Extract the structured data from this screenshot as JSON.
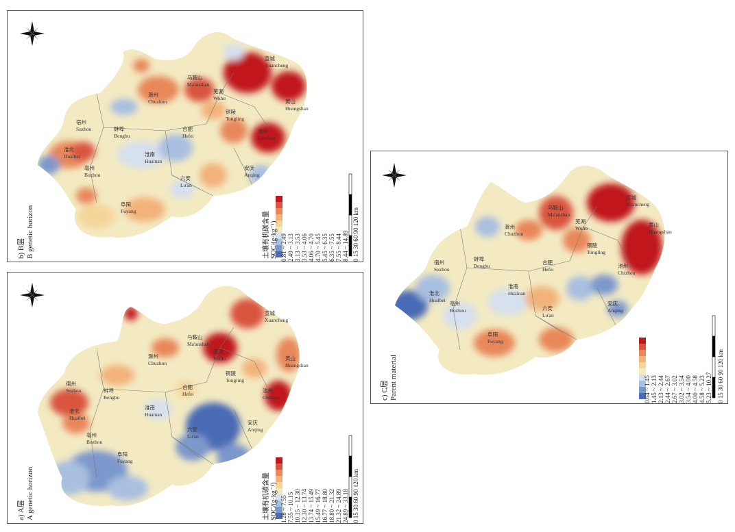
{
  "panels": [
    {
      "id": "b",
      "title_zh": "b) B层",
      "title_en": "B genetic horizon",
      "legend_title_zh": "土壤有机碳含量",
      "legend_title_unit": "SOC/(g·kg⁻¹)",
      "classes": [
        "0.81 ~ 2.49",
        "2.49 ~ 3.13",
        "3.13 ~ 3.53",
        "3.53 ~ 4.06",
        "4.06 ~ 4.70",
        "4.70 ~ 5.45",
        "5.45 ~ 6.35",
        "6.35 ~ 7.55",
        "7.55 ~ 8.44",
        "8.44 ~ 14.89"
      ],
      "cities": [
        {
          "zh": "宿州",
          "en": "Suzhou"
        },
        {
          "zh": "淮北",
          "en": "Huaibei"
        },
        {
          "zh": "亳州",
          "en": "Bozhou"
        },
        {
          "zh": "阜阳",
          "en": "Fuyang"
        },
        {
          "zh": "蚌埠",
          "en": "Bengbu"
        },
        {
          "zh": "淮南",
          "en": "Huainan"
        },
        {
          "zh": "滁州",
          "en": "Chuzhou"
        },
        {
          "zh": "合肥",
          "en": "Hefei"
        },
        {
          "zh": "六安",
          "en": "Lu'an"
        },
        {
          "zh": "马鞍山",
          "en": "Ma'anshan"
        },
        {
          "zh": "芜湖",
          "en": "Wuhu"
        },
        {
          "zh": "铜陵",
          "en": "Tongling"
        },
        {
          "zh": "池州",
          "en": "Chizhou"
        },
        {
          "zh": "安庆",
          "en": "Anqing"
        },
        {
          "zh": "宣城",
          "en": "Xuancheng"
        },
        {
          "zh": "黄山",
          "en": "Huangshan"
        }
      ]
    },
    {
      "id": "a",
      "title_zh": "a) A层",
      "title_en": "A genetic horizon",
      "legend_title_zh": "土壤有机碳含量",
      "legend_title_unit": "SOC/(g·kg⁻¹)",
      "classes": [
        "1.28 ~ 7.55",
        "7.55 ~ 10.15",
        "10.15 ~ 12.30",
        "12.30 ~ 13.74",
        "13.74 ~ 15.49",
        "15.49 ~ 16.77",
        "16.77 ~ 18.80",
        "18.80 ~ 21.32",
        "21.32 ~ 24.89",
        "24.89 ~ 33.18"
      ],
      "cities": [
        {
          "zh": "宿州",
          "en": "Suzhou"
        },
        {
          "zh": "淮北",
          "en": "Huaibei"
        },
        {
          "zh": "亳州",
          "en": "Bozhou"
        },
        {
          "zh": "阜阳",
          "en": "Fuyang"
        },
        {
          "zh": "蚌埠",
          "en": "Bengbu"
        },
        {
          "zh": "淮南",
          "en": "Huainan"
        },
        {
          "zh": "滁州",
          "en": "Chuzhou"
        },
        {
          "zh": "合肥",
          "en": "Hefei"
        },
        {
          "zh": "六安",
          "en": "Lu'an"
        },
        {
          "zh": "马鞍山",
          "en": "Ma'anshan"
        },
        {
          "zh": "芜湖",
          "en": "Wuhu"
        },
        {
          "zh": "铜陵",
          "en": "Tongling"
        },
        {
          "zh": "池州",
          "en": "Chizhou"
        },
        {
          "zh": "安庆",
          "en": "Anqing"
        },
        {
          "zh": "宣城",
          "en": "Xuancheng"
        },
        {
          "zh": "黄山",
          "en": "Huangshan"
        }
      ]
    },
    {
      "id": "c",
      "title_zh": "c) C层",
      "title_en": "Parent material",
      "legend_title_zh": "",
      "legend_title_unit": "",
      "classes": [
        "0.64 ~ 1.45",
        "1.45 ~ 2.13",
        "2.13 ~ 2.44",
        "2.44 ~ 2.67",
        "2.67 ~ 3.02",
        "3.02 ~ 3.54",
        "3.54 ~ 4.00",
        "4.00 ~ 4.58",
        "4.58 ~ 5.23",
        "5.23 ~ 10.27"
      ],
      "cities": [
        {
          "zh": "宿州",
          "en": "Suzhou"
        },
        {
          "zh": "淮北",
          "en": "Huaibei"
        },
        {
          "zh": "亳州",
          "en": "Bozhou"
        },
        {
          "zh": "阜阳",
          "en": "Fuyang"
        },
        {
          "zh": "蚌埠",
          "en": "Bengbu"
        },
        {
          "zh": "淮南",
          "en": "Huainan"
        },
        {
          "zh": "滁州",
          "en": "Chuzhou"
        },
        {
          "zh": "合肥",
          "en": "Hefei"
        },
        {
          "zh": "六安",
          "en": "Lu'an"
        },
        {
          "zh": "马鞍山",
          "en": "Ma'anshan"
        },
        {
          "zh": "芜湖",
          "en": "Wuhu"
        },
        {
          "zh": "铜陵",
          "en": "Tongling"
        },
        {
          "zh": "池州",
          "en": "Chizhou"
        },
        {
          "zh": "安庆",
          "en": "Anqing"
        },
        {
          "zh": "宣城",
          "en": "Xuancheng"
        },
        {
          "zh": "黄山",
          "en": "Huangshan"
        }
      ]
    }
  ],
  "scale_bar": {
    "ticks": [
      "0",
      "15",
      "30",
      "60",
      "90",
      "120"
    ],
    "unit": "km"
  },
  "palette": [
    "#4a6bb5",
    "#7b98cc",
    "#a9bfe0",
    "#d6e0ee",
    "#f3eac2",
    "#f6d59a",
    "#f2b27a",
    "#e8875a",
    "#d9553f",
    "#c0181f"
  ]
}
